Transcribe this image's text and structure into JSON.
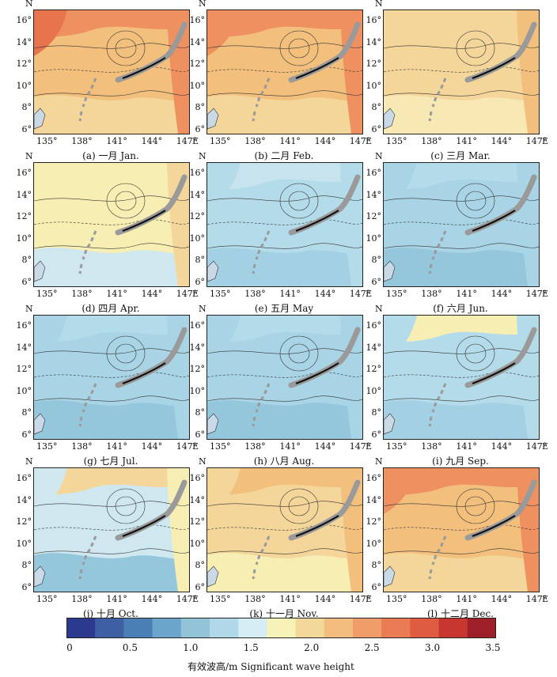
{
  "axes": {
    "north_label": "N",
    "east_label": "E",
    "y_ticks": [
      "16°",
      "14°",
      "12°",
      "10°",
      "8°",
      "6°"
    ],
    "x_ticks": [
      "135°",
      "138°",
      "141°",
      "144°",
      "147°"
    ]
  },
  "panels": [
    {
      "caption": "(a) 一月 Jan.",
      "month": "Jan",
      "fills": {
        "bg": "#f2c07c",
        "top": "#ee9060",
        "west": "#e8744e",
        "east": "#ee9060",
        "low": "#f4d59a"
      }
    },
    {
      "caption": "(b) 二月 Feb.",
      "month": "Feb",
      "fills": {
        "bg": "#f2c07c",
        "top": "#ee9060",
        "west": "#ee9060",
        "east": "#ee9060",
        "low": "#f4d59a"
      }
    },
    {
      "caption": "(c) 三月 Mar.",
      "month": "Mar",
      "fills": {
        "bg": "#f4d59a",
        "top": "#f4d59a",
        "west": "#f4d59a",
        "east": "#f2c07c",
        "low": "#f7e8b4"
      }
    },
    {
      "caption": "(d) 四月 Apr.",
      "month": "Apr",
      "fills": {
        "bg": "#f7eeb4",
        "top": "#f7eeb4",
        "west": "#f7eeb4",
        "east": "#f4d59a",
        "low": "#cfe8ef"
      }
    },
    {
      "caption": "(e) 五月 May",
      "month": "May",
      "fills": {
        "bg": "#b4dbe9",
        "top": "#c6e3ee",
        "west": "#b4dbe9",
        "east": "#b4dbe9",
        "low": "#a3d0e3"
      }
    },
    {
      "caption": "(f) 六月 Jun.",
      "month": "Jun",
      "fills": {
        "bg": "#a8d4e5",
        "top": "#b4dbe9",
        "west": "#a8d4e5",
        "east": "#a8d4e5",
        "low": "#94c6dc"
      }
    },
    {
      "caption": "(g) 七月 Jul.",
      "month": "Jul",
      "fills": {
        "bg": "#a8d4e5",
        "top": "#b4dbe9",
        "west": "#a8d4e5",
        "east": "#a8d4e5",
        "low": "#94c6dc"
      }
    },
    {
      "caption": "(h) 八月 Aug.",
      "month": "Aug",
      "fills": {
        "bg": "#a8d4e5",
        "top": "#b4dbe9",
        "west": "#a8d4e5",
        "east": "#a8d4e5",
        "low": "#94c6dc"
      }
    },
    {
      "caption": "(i) 九月 Sep.",
      "month": "Sep",
      "fills": {
        "bg": "#b4dbe9",
        "top": "#f7eeb4",
        "west": "#b4dbe9",
        "east": "#b4dbe9",
        "low": "#a3d0e3"
      }
    },
    {
      "caption": "(j) 十月 Oct.",
      "month": "Oct",
      "fills": {
        "bg": "#cfe8ef",
        "top": "#f4d59a",
        "west": "#cfe8ef",
        "east": "#f7eeb4",
        "low": "#94c6dc"
      }
    },
    {
      "caption": "(k) 十一月 Nov.",
      "month": "Nov",
      "fills": {
        "bg": "#f4d59a",
        "top": "#f2c07c",
        "west": "#f4d59a",
        "east": "#f2c07c",
        "low": "#f7eeb4"
      }
    },
    {
      "caption": "(l) 十二月 Dec.",
      "month": "Dec",
      "fills": {
        "bg": "#f2c07c",
        "top": "#ee9060",
        "west": "#ee9060",
        "east": "#ee9060",
        "low": "#f4d59a"
      }
    }
  ],
  "colorbar": {
    "title": "有效波高/m Significant wave height",
    "tick_labels": [
      "0",
      "0.5",
      "1.0",
      "1.5",
      "2.0",
      "2.5",
      "3.0",
      "3.5"
    ],
    "range": [
      0,
      3.5
    ],
    "colors": [
      "#2b3a8f",
      "#3f5fa5",
      "#4a7fb6",
      "#6ba5cb",
      "#92c3d9",
      "#b0d8e8",
      "#d4ecf2",
      "#f6f2b8",
      "#f4d79a",
      "#f2bd7e",
      "#ef9c68",
      "#e97b55",
      "#df5b42",
      "#c8372f",
      "#9c1f2a"
    ]
  }
}
